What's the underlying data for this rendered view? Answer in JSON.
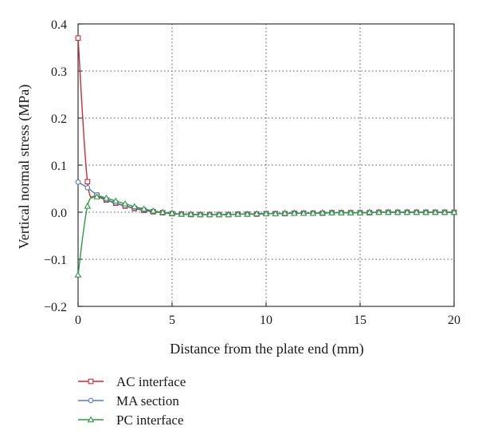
{
  "chart_data": {
    "type": "line",
    "xlabel": "Distance from the plate end (mm)",
    "ylabel": "Vertical normal stress (MPa)",
    "xlim": [
      0,
      20
    ],
    "ylim": [
      -0.2,
      0.4
    ],
    "x_ticks": [
      0,
      5,
      10,
      15,
      20
    ],
    "y_ticks": [
      -0.2,
      -0.1,
      0.0,
      0.1,
      0.2,
      0.3,
      0.4
    ],
    "x_tick_labels": [
      "0",
      "5",
      "10",
      "15",
      "20"
    ],
    "y_tick_labels": [
      "−0.2",
      "−0.1",
      "0.0",
      "0.1",
      "0.2",
      "0.3",
      "0.4"
    ],
    "grid": true,
    "legend_position": "bottom-left, below plot",
    "series": [
      {
        "name": "AC interface",
        "color": "#cc2a36",
        "marker": "square",
        "x": [
          0,
          0.5,
          1.0,
          1.5,
          2.0,
          2.5,
          3.0,
          3.5,
          4.0,
          4.5,
          5.0,
          5.5,
          6.0,
          6.5,
          7.0,
          7.5,
          8.0,
          8.5,
          9.0,
          9.5,
          10.0,
          10.5,
          11.0,
          11.5,
          12.0,
          12.5,
          13.0,
          13.5,
          14.0,
          14.5,
          15.0,
          15.5,
          16.0,
          16.5,
          17.0,
          17.5,
          18.0,
          18.5,
          19.0,
          19.5,
          20.0
        ],
        "values": [
          0.37,
          0.065,
          0.036,
          0.026,
          0.019,
          0.013,
          0.008,
          0.004,
          0.001,
          -0.001,
          -0.003,
          -0.004,
          -0.005,
          -0.005,
          -0.005,
          -0.005,
          -0.005,
          -0.004,
          -0.004,
          -0.004,
          -0.003,
          -0.003,
          -0.003,
          -0.002,
          -0.002,
          -0.002,
          -0.002,
          -0.001,
          -0.001,
          -0.001,
          -0.001,
          -0.001,
          0.0,
          0.0,
          0.0,
          0.0,
          0.0,
          0.0,
          0.0,
          0.0,
          0.0
        ]
      },
      {
        "name": "MA section",
        "color": "#5a78b8",
        "marker": "circle",
        "x": [
          0,
          0.5,
          1.0,
          1.5,
          2.0,
          2.5,
          3.0,
          3.5,
          4.0,
          4.5,
          5.0,
          5.5,
          6.0,
          6.5,
          7.0,
          7.5,
          8.0,
          8.5,
          9.0,
          9.5,
          10.0,
          10.5,
          11.0,
          11.5,
          12.0,
          12.5,
          13.0,
          13.5,
          14.0,
          14.5,
          15.0,
          15.5,
          16.0,
          16.5,
          17.0,
          17.5,
          18.0,
          18.5,
          19.0,
          19.5,
          20.0
        ],
        "values": [
          0.064,
          0.052,
          0.037,
          0.027,
          0.02,
          0.014,
          0.009,
          0.005,
          0.002,
          -0.001,
          -0.003,
          -0.004,
          -0.005,
          -0.005,
          -0.005,
          -0.005,
          -0.005,
          -0.004,
          -0.004,
          -0.004,
          -0.003,
          -0.003,
          -0.003,
          -0.002,
          -0.002,
          -0.002,
          -0.002,
          -0.001,
          -0.001,
          -0.001,
          -0.001,
          -0.001,
          0.0,
          0.0,
          0.0,
          0.0,
          0.0,
          0.0,
          0.0,
          0.0,
          0.0
        ]
      },
      {
        "name": "PC interface",
        "color": "#2e9a48",
        "marker": "triangle",
        "x": [
          0,
          0.5,
          1.0,
          1.5,
          2.0,
          2.5,
          3.0,
          3.5,
          4.0,
          4.5,
          5.0,
          5.5,
          6.0,
          6.5,
          7.0,
          7.5,
          8.0,
          8.5,
          9.0,
          9.5,
          10.0,
          10.5,
          11.0,
          11.5,
          12.0,
          12.5,
          13.0,
          13.5,
          14.0,
          14.5,
          15.0,
          15.5,
          16.0,
          16.5,
          17.0,
          17.5,
          18.0,
          18.5,
          19.0,
          19.5,
          20.0
        ],
        "values": [
          -0.133,
          0.013,
          0.033,
          0.03,
          0.024,
          0.018,
          0.012,
          0.007,
          0.003,
          0.0,
          -0.002,
          -0.004,
          -0.004,
          -0.005,
          -0.005,
          -0.005,
          -0.005,
          -0.004,
          -0.004,
          -0.003,
          -0.003,
          -0.003,
          -0.002,
          -0.002,
          -0.002,
          -0.002,
          -0.001,
          -0.001,
          -0.001,
          -0.001,
          -0.001,
          0.0,
          0.0,
          0.0,
          0.0,
          0.0,
          0.0,
          0.0,
          0.0,
          0.0,
          0.0
        ]
      }
    ]
  }
}
